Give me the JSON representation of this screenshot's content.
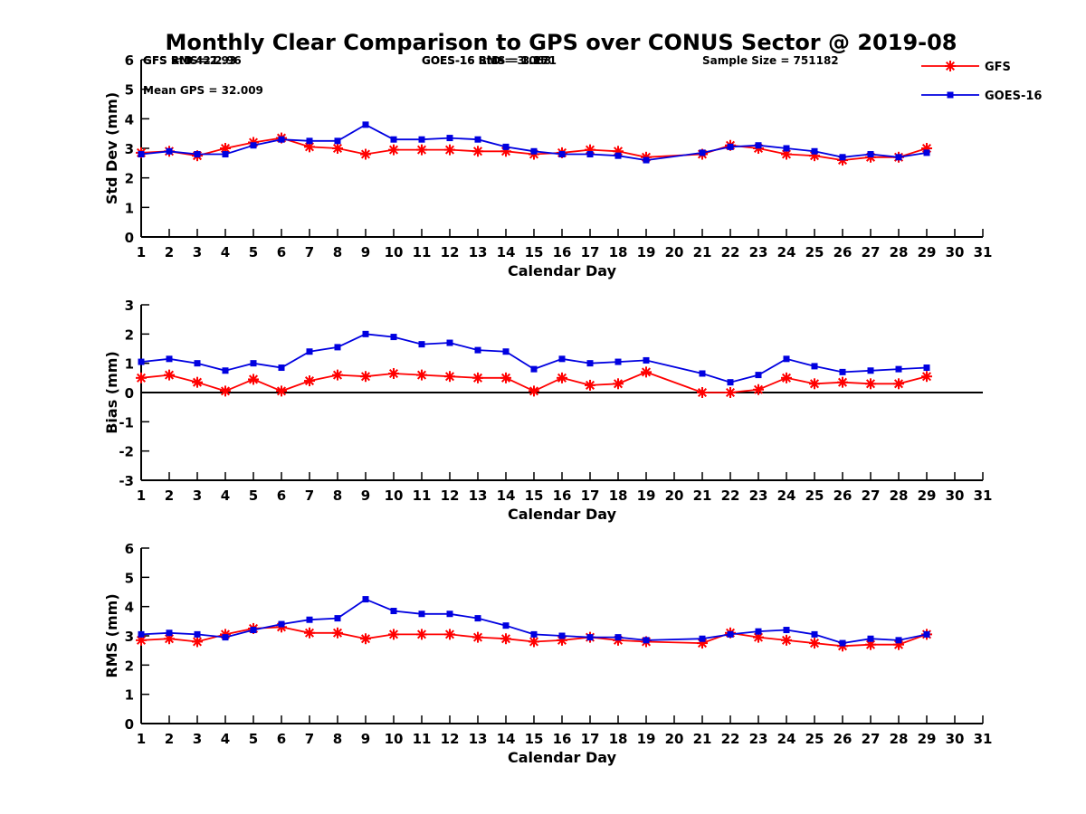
{
  "title": "Monthly Clear Comparison to GPS over CONUS Sector @ 2019-08",
  "colors": {
    "GFS": "#ff0000",
    "GOES-16": "#0000e0",
    "axis": "#000000"
  },
  "legend": [
    {
      "name": "GFS",
      "marker": "asterisk"
    },
    {
      "name": "GOES-16",
      "marker": "square"
    }
  ],
  "chart_data": [
    {
      "type": "line",
      "xlabel": "Calendar Day",
      "ylabel": "Std Dev (mm)",
      "xlim": [
        1,
        31
      ],
      "ylim": [
        0,
        6
      ],
      "xticks": [
        1,
        2,
        3,
        4,
        5,
        6,
        7,
        8,
        9,
        10,
        11,
        12,
        13,
        14,
        15,
        16,
        17,
        18,
        19,
        20,
        21,
        22,
        23,
        24,
        25,
        26,
        27,
        28,
        29,
        30,
        31
      ],
      "yticks": [
        0,
        1,
        2,
        3,
        4,
        5,
        6
      ],
      "zero_line": false,
      "annotations": [
        {
          "text": "GFS StD = 2.93",
          "row": 1,
          "col": "left"
        },
        {
          "text": "GOES-16 StD = 3.063",
          "row": 1,
          "col": "middle"
        },
        {
          "text": "Sample Size = 751182",
          "row": 1,
          "col": "right"
        },
        {
          "text": "Mean GPS = 32.009",
          "row": 2,
          "col": "left"
        }
      ],
      "series": [
        {
          "name": "GFS",
          "x": [
            1,
            2,
            3,
            4,
            5,
            6,
            7,
            8,
            9,
            10,
            11,
            12,
            13,
            14,
            15,
            16,
            17,
            18,
            19,
            21,
            22,
            23,
            24,
            25,
            26,
            27,
            28,
            29
          ],
          "values": [
            2.85,
            2.9,
            2.75,
            3.0,
            3.2,
            3.35,
            3.05,
            3.0,
            2.8,
            2.95,
            2.95,
            2.95,
            2.9,
            2.9,
            2.8,
            2.85,
            2.95,
            2.9,
            2.7,
            2.8,
            3.1,
            3.0,
            2.8,
            2.75,
            2.6,
            2.7,
            2.7,
            3.0
          ]
        },
        {
          "name": "GOES-16",
          "x": [
            1,
            2,
            3,
            4,
            5,
            6,
            7,
            8,
            9,
            10,
            11,
            12,
            13,
            14,
            15,
            16,
            17,
            18,
            19,
            21,
            22,
            23,
            24,
            25,
            26,
            27,
            28,
            29
          ],
          "values": [
            2.8,
            2.9,
            2.8,
            2.8,
            3.1,
            3.3,
            3.25,
            3.25,
            3.8,
            3.3,
            3.3,
            3.35,
            3.3,
            3.05,
            2.9,
            2.8,
            2.8,
            2.75,
            2.6,
            2.85,
            3.05,
            3.1,
            3.0,
            2.9,
            2.7,
            2.8,
            2.7,
            2.85
          ]
        }
      ]
    },
    {
      "type": "line",
      "xlabel": "Calendar Day",
      "ylabel": "Bias (mm)",
      "xlim": [
        1,
        31
      ],
      "ylim": [
        -3,
        3
      ],
      "xticks": [
        1,
        2,
        3,
        4,
        5,
        6,
        7,
        8,
        9,
        10,
        11,
        12,
        13,
        14,
        15,
        16,
        17,
        18,
        19,
        20,
        21,
        22,
        23,
        24,
        25,
        26,
        27,
        28,
        29,
        30,
        31
      ],
      "yticks": [
        -3,
        -2,
        -1,
        0,
        1,
        2,
        3
      ],
      "zero_line": true,
      "annotations": [
        {
          "text": "GFS = 0.421",
          "row": 1,
          "col": "left"
        },
        {
          "text": "GOES-16 Bias = 1.15",
          "row": 1,
          "col": "middle"
        }
      ],
      "series": [
        {
          "name": "GFS",
          "x": [
            1,
            2,
            3,
            4,
            5,
            6,
            7,
            8,
            9,
            10,
            11,
            12,
            13,
            14,
            15,
            16,
            17,
            18,
            19,
            21,
            22,
            23,
            24,
            25,
            26,
            27,
            28,
            29
          ],
          "values": [
            0.5,
            0.6,
            0.35,
            0.05,
            0.45,
            0.05,
            0.4,
            0.6,
            0.55,
            0.65,
            0.6,
            0.55,
            0.5,
            0.5,
            0.05,
            0.5,
            0.25,
            0.3,
            0.7,
            0.0,
            0.0,
            0.1,
            0.5,
            0.3,
            0.35,
            0.3,
            0.3,
            0.55
          ]
        },
        {
          "name": "GOES-16",
          "x": [
            1,
            2,
            3,
            4,
            5,
            6,
            7,
            8,
            9,
            10,
            11,
            12,
            13,
            14,
            15,
            16,
            17,
            18,
            19,
            21,
            22,
            23,
            24,
            25,
            26,
            27,
            28,
            29
          ],
          "values": [
            1.05,
            1.15,
            1.0,
            0.75,
            1.0,
            0.85,
            1.4,
            1.55,
            2.0,
            1.9,
            1.65,
            1.7,
            1.45,
            1.4,
            0.8,
            1.15,
            1.0,
            1.05,
            1.1,
            0.65,
            0.35,
            0.6,
            1.15,
            0.9,
            0.7,
            0.75,
            0.8,
            0.85
          ]
        }
      ]
    },
    {
      "type": "line",
      "xlabel": "Calendar Day",
      "ylabel": "RMS (mm)",
      "xlim": [
        1,
        31
      ],
      "ylim": [
        0,
        6
      ],
      "xticks": [
        1,
        2,
        3,
        4,
        5,
        6,
        7,
        8,
        9,
        10,
        11,
        12,
        13,
        14,
        15,
        16,
        17,
        18,
        19,
        20,
        21,
        22,
        23,
        24,
        25,
        26,
        27,
        28,
        29,
        30,
        31
      ],
      "yticks": [
        0,
        1,
        2,
        3,
        4,
        5,
        6
      ],
      "zero_line": false,
      "annotations": [
        {
          "text": "GFS RMS = 2.96",
          "row": 1,
          "col": "left"
        },
        {
          "text": "GOES-16 RMS = 3.271",
          "row": 1,
          "col": "middle"
        }
      ],
      "series": [
        {
          "name": "GFS",
          "x": [
            1,
            2,
            3,
            4,
            5,
            6,
            7,
            8,
            9,
            10,
            11,
            12,
            13,
            14,
            15,
            16,
            17,
            18,
            19,
            21,
            22,
            23,
            24,
            25,
            26,
            27,
            28,
            29
          ],
          "values": [
            2.85,
            2.9,
            2.8,
            3.05,
            3.25,
            3.3,
            3.1,
            3.1,
            2.9,
            3.05,
            3.05,
            3.05,
            2.95,
            2.9,
            2.8,
            2.85,
            2.95,
            2.85,
            2.8,
            2.75,
            3.1,
            2.95,
            2.85,
            2.75,
            2.65,
            2.7,
            2.7,
            3.05
          ]
        },
        {
          "name": "GOES-16",
          "x": [
            1,
            2,
            3,
            4,
            5,
            6,
            7,
            8,
            9,
            10,
            11,
            12,
            13,
            14,
            15,
            16,
            17,
            18,
            19,
            21,
            22,
            23,
            24,
            25,
            26,
            27,
            28,
            29
          ],
          "values": [
            3.05,
            3.1,
            3.05,
            2.95,
            3.2,
            3.4,
            3.55,
            3.6,
            4.25,
            3.85,
            3.75,
            3.75,
            3.6,
            3.35,
            3.05,
            3.0,
            2.95,
            2.95,
            2.85,
            2.9,
            3.05,
            3.15,
            3.2,
            3.05,
            2.75,
            2.9,
            2.85,
            3.05
          ]
        }
      ]
    }
  ]
}
